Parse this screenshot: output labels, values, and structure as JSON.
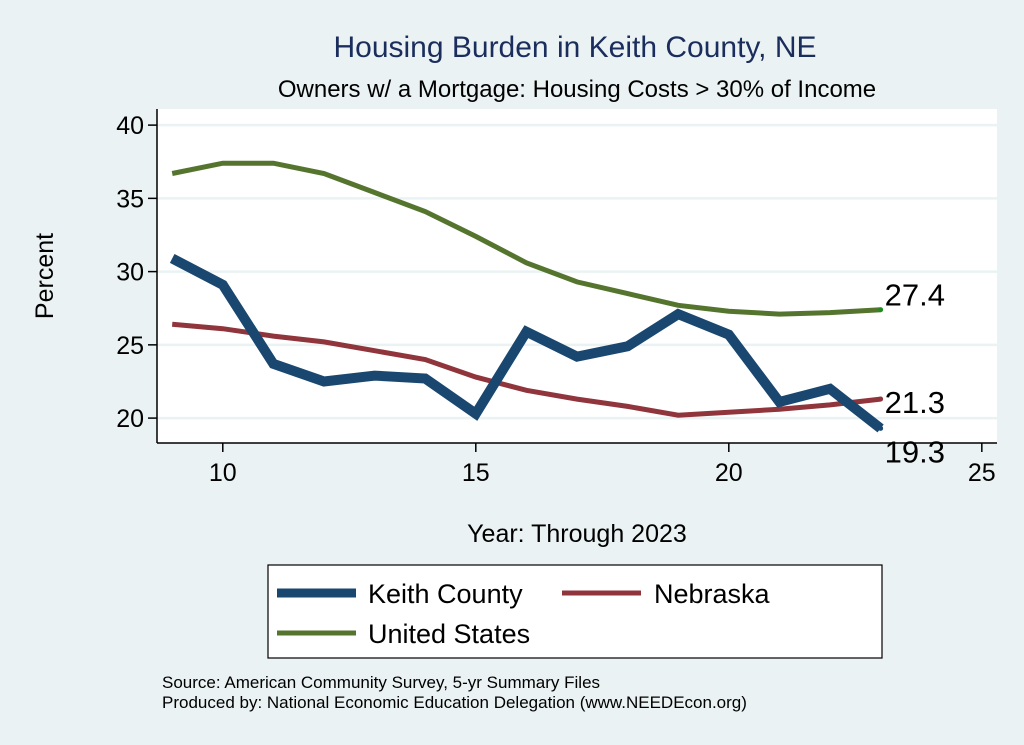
{
  "chart_data": {
    "type": "line",
    "title": "Housing Burden in Keith County, NE",
    "subtitle": "Owners w/ a Mortgage: Housing Costs > 30% of Income",
    "xlabel": "Year: Through 2023",
    "ylabel": "Percent",
    "xlim": [
      8.7,
      25.3
    ],
    "ylim": [
      18.3,
      41.1
    ],
    "xticks": [
      10,
      15,
      20,
      25
    ],
    "yticks": [
      20,
      25,
      30,
      35,
      40
    ],
    "grid": true,
    "x": [
      9,
      10,
      11,
      12,
      13,
      14,
      15,
      16,
      17,
      18,
      19,
      20,
      21,
      22,
      23
    ],
    "series": [
      {
        "name": "Keith County",
        "color": "#1A476F",
        "values": [
          30.9,
          29.1,
          23.7,
          22.5,
          22.9,
          22.7,
          20.3,
          25.9,
          24.2,
          24.9,
          27.1,
          25.7,
          21.1,
          22.0,
          19.3
        ],
        "end_label": "19.3"
      },
      {
        "name": "Nebraska",
        "color": "#90353B",
        "values": [
          26.4,
          26.1,
          25.6,
          25.2,
          24.6,
          24.0,
          22.8,
          21.9,
          21.3,
          20.8,
          20.2,
          20.4,
          20.6,
          20.9,
          21.3
        ],
        "end_label": "21.3"
      },
      {
        "name": "United States",
        "color": "#55752F",
        "values": [
          36.7,
          37.4,
          37.4,
          36.7,
          35.4,
          34.1,
          32.4,
          30.6,
          29.3,
          28.5,
          27.7,
          27.3,
          27.1,
          27.2,
          27.4
        ],
        "end_label": "27.4"
      }
    ],
    "legend": {
      "position": "bottom",
      "entries": [
        "Keith County",
        "Nebraska",
        "United States"
      ]
    },
    "notes": [
      "Source: American Community Survey, 5-yr Summary Files",
      "Produced by: National Economic Education Delegation (www.NEEDEcon.org)"
    ]
  }
}
